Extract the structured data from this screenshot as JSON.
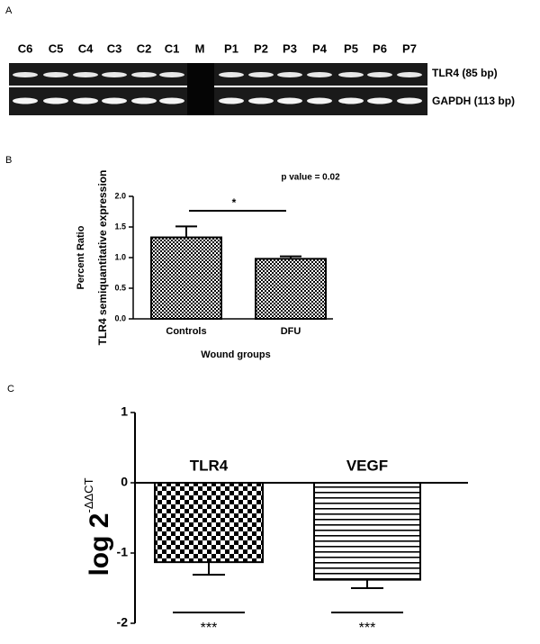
{
  "panel_labels": [
    "A",
    "B",
    "C"
  ],
  "gel": {
    "lanes": [
      "C6",
      "C5",
      "C4",
      "C3",
      "C2",
      "C1",
      "M",
      "P1",
      "P2",
      "P3",
      "P4",
      "P5",
      "P6",
      "P7"
    ],
    "bands": [
      "TLR4 (85 bp)",
      "GAPDH (113 bp)"
    ]
  },
  "chart_data": [
    {
      "type": "bar",
      "ylabel": [
        "Percent Ratio",
        "TLR4 semiquantitative expression"
      ],
      "xlabel": "Wound groups",
      "annotation": "p value = 0.02",
      "significance": [
        "*"
      ],
      "categories": [
        "Controls",
        "DFU"
      ],
      "values": [
        1.33,
        0.98
      ],
      "errors": [
        0.18,
        0.04
      ],
      "color": "#000000",
      "ylim": [
        0,
        2
      ],
      "yticks": [
        {
          "value": 0,
          "label": "0.0"
        },
        {
          "value": 0.5,
          "label": "0.5"
        },
        {
          "value": 1,
          "label": "1.0"
        },
        {
          "value": 1.5,
          "label": "1.5"
        },
        {
          "value": 2,
          "label": "2.0"
        }
      ]
    },
    {
      "type": "bar",
      "ylabel": {
        "base": "log 2",
        "superscript": "-ΔΔCT"
      },
      "significance": [
        "***",
        "***"
      ],
      "categories": [
        "TLR4",
        "VEGF"
      ],
      "values": [
        -1.13,
        -1.38
      ],
      "errors": [
        0.18,
        0.12
      ],
      "color": "#000000",
      "ylim": [
        -2,
        1
      ],
      "yticks": [
        -2,
        -1,
        0,
        1
      ]
    }
  ]
}
